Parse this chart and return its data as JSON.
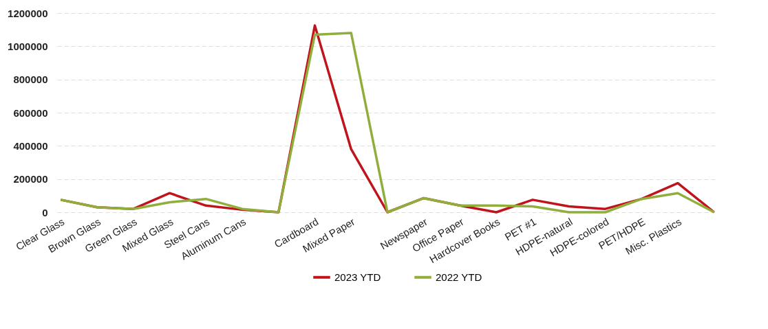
{
  "chart_data": {
    "type": "line",
    "categories": [
      "Clear Glass",
      "Brown Glass",
      "Green Glass",
      "Mixed Glass",
      "Steel Cans",
      "Aluminum Cans",
      null,
      "Cardboard",
      "Mixed Paper",
      null,
      "Newspaper",
      "Office Paper",
      "Hardcover Books",
      "PET #1",
      "HDPE-natural",
      "HDPE-colored",
      "PET/HDPE",
      "Misc. Plastics",
      null
    ],
    "series": [
      {
        "name": "2023 YTD",
        "color": "#c0141c",
        "values": [
          75000,
          30000,
          20000,
          115000,
          40000,
          15000,
          0,
          1125000,
          380000,
          0,
          85000,
          40000,
          0,
          75000,
          35000,
          20000,
          80000,
          175000,
          0
        ]
      },
      {
        "name": "2022 YTD",
        "color": "#8fae3c",
        "values": [
          75000,
          30000,
          20000,
          60000,
          80000,
          20000,
          0,
          1070000,
          1080000,
          0,
          85000,
          40000,
          40000,
          35000,
          0,
          0,
          80000,
          115000,
          0
        ]
      }
    ],
    "ylim": [
      0,
      1200000
    ],
    "yticks": [
      0,
      200000,
      400000,
      600000,
      800000,
      1000000,
      1200000
    ],
    "grid": "y",
    "legend": "bottom",
    "marker": "none",
    "line_style": "solid"
  }
}
